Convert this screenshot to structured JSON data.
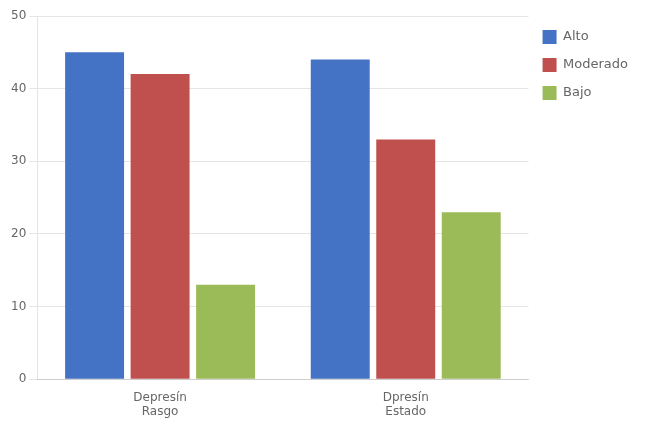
{
  "chart_data": {
    "type": "bar",
    "categories": [
      "Depresín\nRasgo",
      "Dpresín\nEstado"
    ],
    "series": [
      {
        "name": "Alto",
        "color": "#4472C4",
        "values": [
          45,
          44
        ]
      },
      {
        "name": "Moderado",
        "color": "#C0504D",
        "values": [
          42,
          33
        ]
      },
      {
        "name": "Bajo",
        "color": "#9BBB59",
        "values": [
          13,
          23
        ]
      }
    ],
    "ylim": [
      0,
      50
    ],
    "yticks": [
      0,
      10,
      20,
      30,
      40,
      50
    ],
    "grid": true,
    "legend": "right"
  }
}
